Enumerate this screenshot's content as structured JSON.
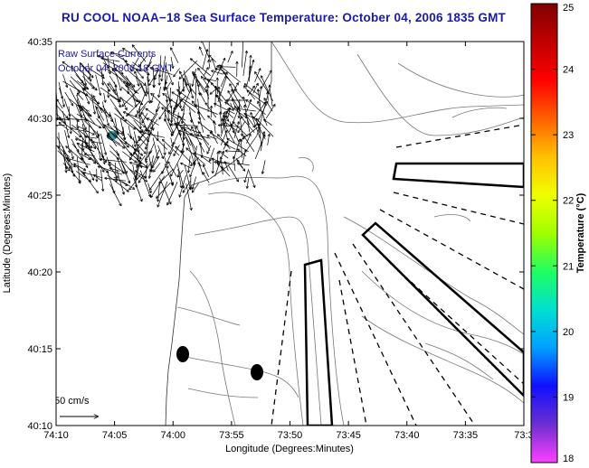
{
  "title": "RU COOL  NOAA−18  Sea Surface Temperature:  October 04, 2006 1835 GMT",
  "overlay": {
    "line1": "Raw Surface Currents",
    "line2": "October 04, 2006 18 GMT"
  },
  "axes": {
    "xlabel": "Longitude (Degrees:Minutes)",
    "ylabel": "Latitude (Degrees:Minutes)",
    "xticks": [
      "74:10",
      "74:05",
      "74:00",
      "73:55",
      "73:50",
      "73:45",
      "73:40",
      "73:35",
      "73:3"
    ],
    "yticks": [
      "40:35",
      "40:30",
      "40:25",
      "40:20",
      "40:15",
      "40:10"
    ]
  },
  "scale": {
    "label": "50 cm/s"
  },
  "colorbar": {
    "label": "Temperature (°C)",
    "ticks": [
      "25",
      "24",
      "23",
      "22",
      "21",
      "20",
      "19",
      "18"
    ],
    "min": 18,
    "max": 25,
    "colors": [
      "#ff40ff",
      "#6a2fd0",
      "#1010ff",
      "#00a0ff",
      "#00e0d0",
      "#20ff60",
      "#a0ff00",
      "#f0ff00",
      "#ffc000",
      "#ff6000",
      "#ff0000",
      "#c00000",
      "#800000"
    ]
  }
}
